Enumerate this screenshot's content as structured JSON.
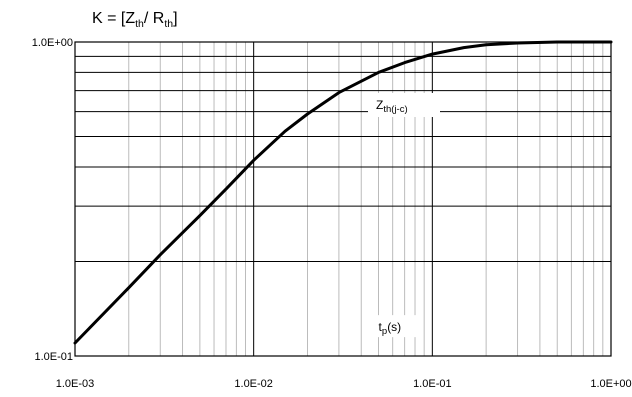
{
  "chart_data": {
    "type": "line",
    "title": {
      "prefix": "K = [Z",
      "sub1": "th",
      "mid": "/ R",
      "sub2": "th",
      "suffix": "]"
    },
    "x_axis": {
      "scale": "log",
      "range": [
        0.001,
        1
      ],
      "tick_labels": [
        "1.0E-03",
        "1.0E-02",
        "1.0E-01",
        "1.0E+00"
      ]
    },
    "y_axis": {
      "scale": "log",
      "range": [
        0.1,
        1
      ],
      "tick_labels": [
        "1.0E-01",
        "1.0E+00"
      ]
    },
    "grid": true,
    "series": [
      {
        "name_main": "Z",
        "name_sub": "th(j-c)",
        "x": [
          0.001,
          0.002,
          0.003,
          0.005,
          0.007,
          0.01,
          0.015,
          0.02,
          0.03,
          0.05,
          0.07,
          0.1,
          0.15,
          0.2,
          0.3,
          0.5,
          0.7,
          1
        ],
        "y": [
          0.11,
          0.165,
          0.21,
          0.28,
          0.34,
          0.42,
          0.52,
          0.59,
          0.69,
          0.8,
          0.86,
          0.915,
          0.96,
          0.98,
          0.993,
          1.0,
          1.0,
          1.0
        ]
      }
    ],
    "annotation": {
      "main": "t",
      "sub": "p",
      "suffix": "(s)",
      "x": 0.05,
      "y": 0.12
    }
  }
}
